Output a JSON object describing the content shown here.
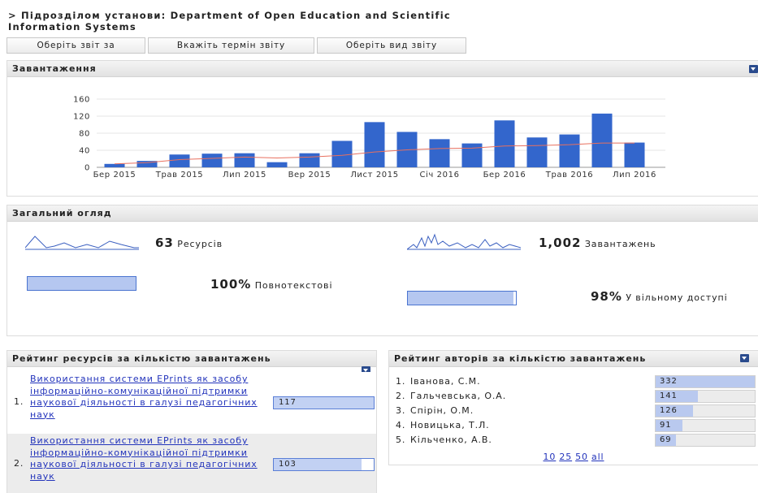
{
  "header": {
    "title": "> Підрозділом установи: Department of Open Education and Scientific Information Systems"
  },
  "buttons": [
    "Оберіть звіт за",
    "Вкажіть термін звіту",
    "Оберіть вид звіту"
  ],
  "downloads_panel": {
    "title": "Завантаження"
  },
  "chart_data": {
    "type": "bar",
    "categories": [
      "Бер 2015",
      null,
      "Трав 2015",
      null,
      "Лип 2015",
      null,
      "Вер 2015",
      null,
      "Лист 2015",
      null,
      "Січ 2016",
      null,
      "Бер 2016",
      null,
      "Трав 2016",
      null,
      "Лип 2016"
    ],
    "series": [
      {
        "color": "#3366cc",
        "values": [
          8,
          15,
          30,
          32,
          33,
          12,
          33,
          62,
          106,
          83,
          66,
          56,
          110,
          70,
          77,
          126,
          58
        ]
      },
      {
        "type": "line",
        "color": "#e8705f",
        "values": [
          8,
          11,
          18,
          21,
          24,
          22,
          24,
          28,
          36,
          41,
          44,
          45,
          50,
          51,
          53,
          57,
          57
        ]
      }
    ],
    "ylim": [
      0,
      160
    ],
    "yticks": [
      0,
      40,
      80,
      120,
      160
    ],
    "grid": true
  },
  "overview": {
    "title": "Загальний огляд",
    "resources_count": 63,
    "resources_label": "Ресурсів",
    "downloads_count": {
      "value": 1002,
      "label": "1,002"
    },
    "downloads_label": "Завантажень",
    "fulltext_percent": {
      "value": 100,
      "label": "100%"
    },
    "fulltext_label": "Повнотекстові",
    "open_percent": {
      "value": 98,
      "label": "98%"
    },
    "open_label": "У вільному доступі"
  },
  "resource_ranking": {
    "title": "Рейтинг ресурсів за кількістю завантажень",
    "items": [
      {
        "rank": "1.",
        "title": "Використання системи EPrints як засобу інформаційно-комунікаційної підтримки наукової діяльності в галузі педагогічних наук",
        "downloads": 117
      },
      {
        "rank": "2.",
        "title": "Використання системи EPrints як засобу інформаційно-комунікаційної підтримки наукової діяльності в галузі педагогічних наук",
        "downloads": 103
      }
    ]
  },
  "author_ranking": {
    "title": "Рейтинг авторів за кількістю завантажень",
    "items": [
      {
        "rank": "1.",
        "name": "Іванова, С.М.",
        "downloads": 332
      },
      {
        "rank": "2.",
        "name": "Гальчевська, О.А.",
        "downloads": 141
      },
      {
        "rank": "3.",
        "name": "Спірін, О.М.",
        "downloads": 126
      },
      {
        "rank": "4.",
        "name": "Новицька, Т.Л.",
        "downloads": 91
      },
      {
        "rank": "5.",
        "name": "Кільченко, А.В.",
        "downloads": 69
      }
    ],
    "page_sizes": [
      "10",
      "25",
      "50",
      "all"
    ]
  }
}
